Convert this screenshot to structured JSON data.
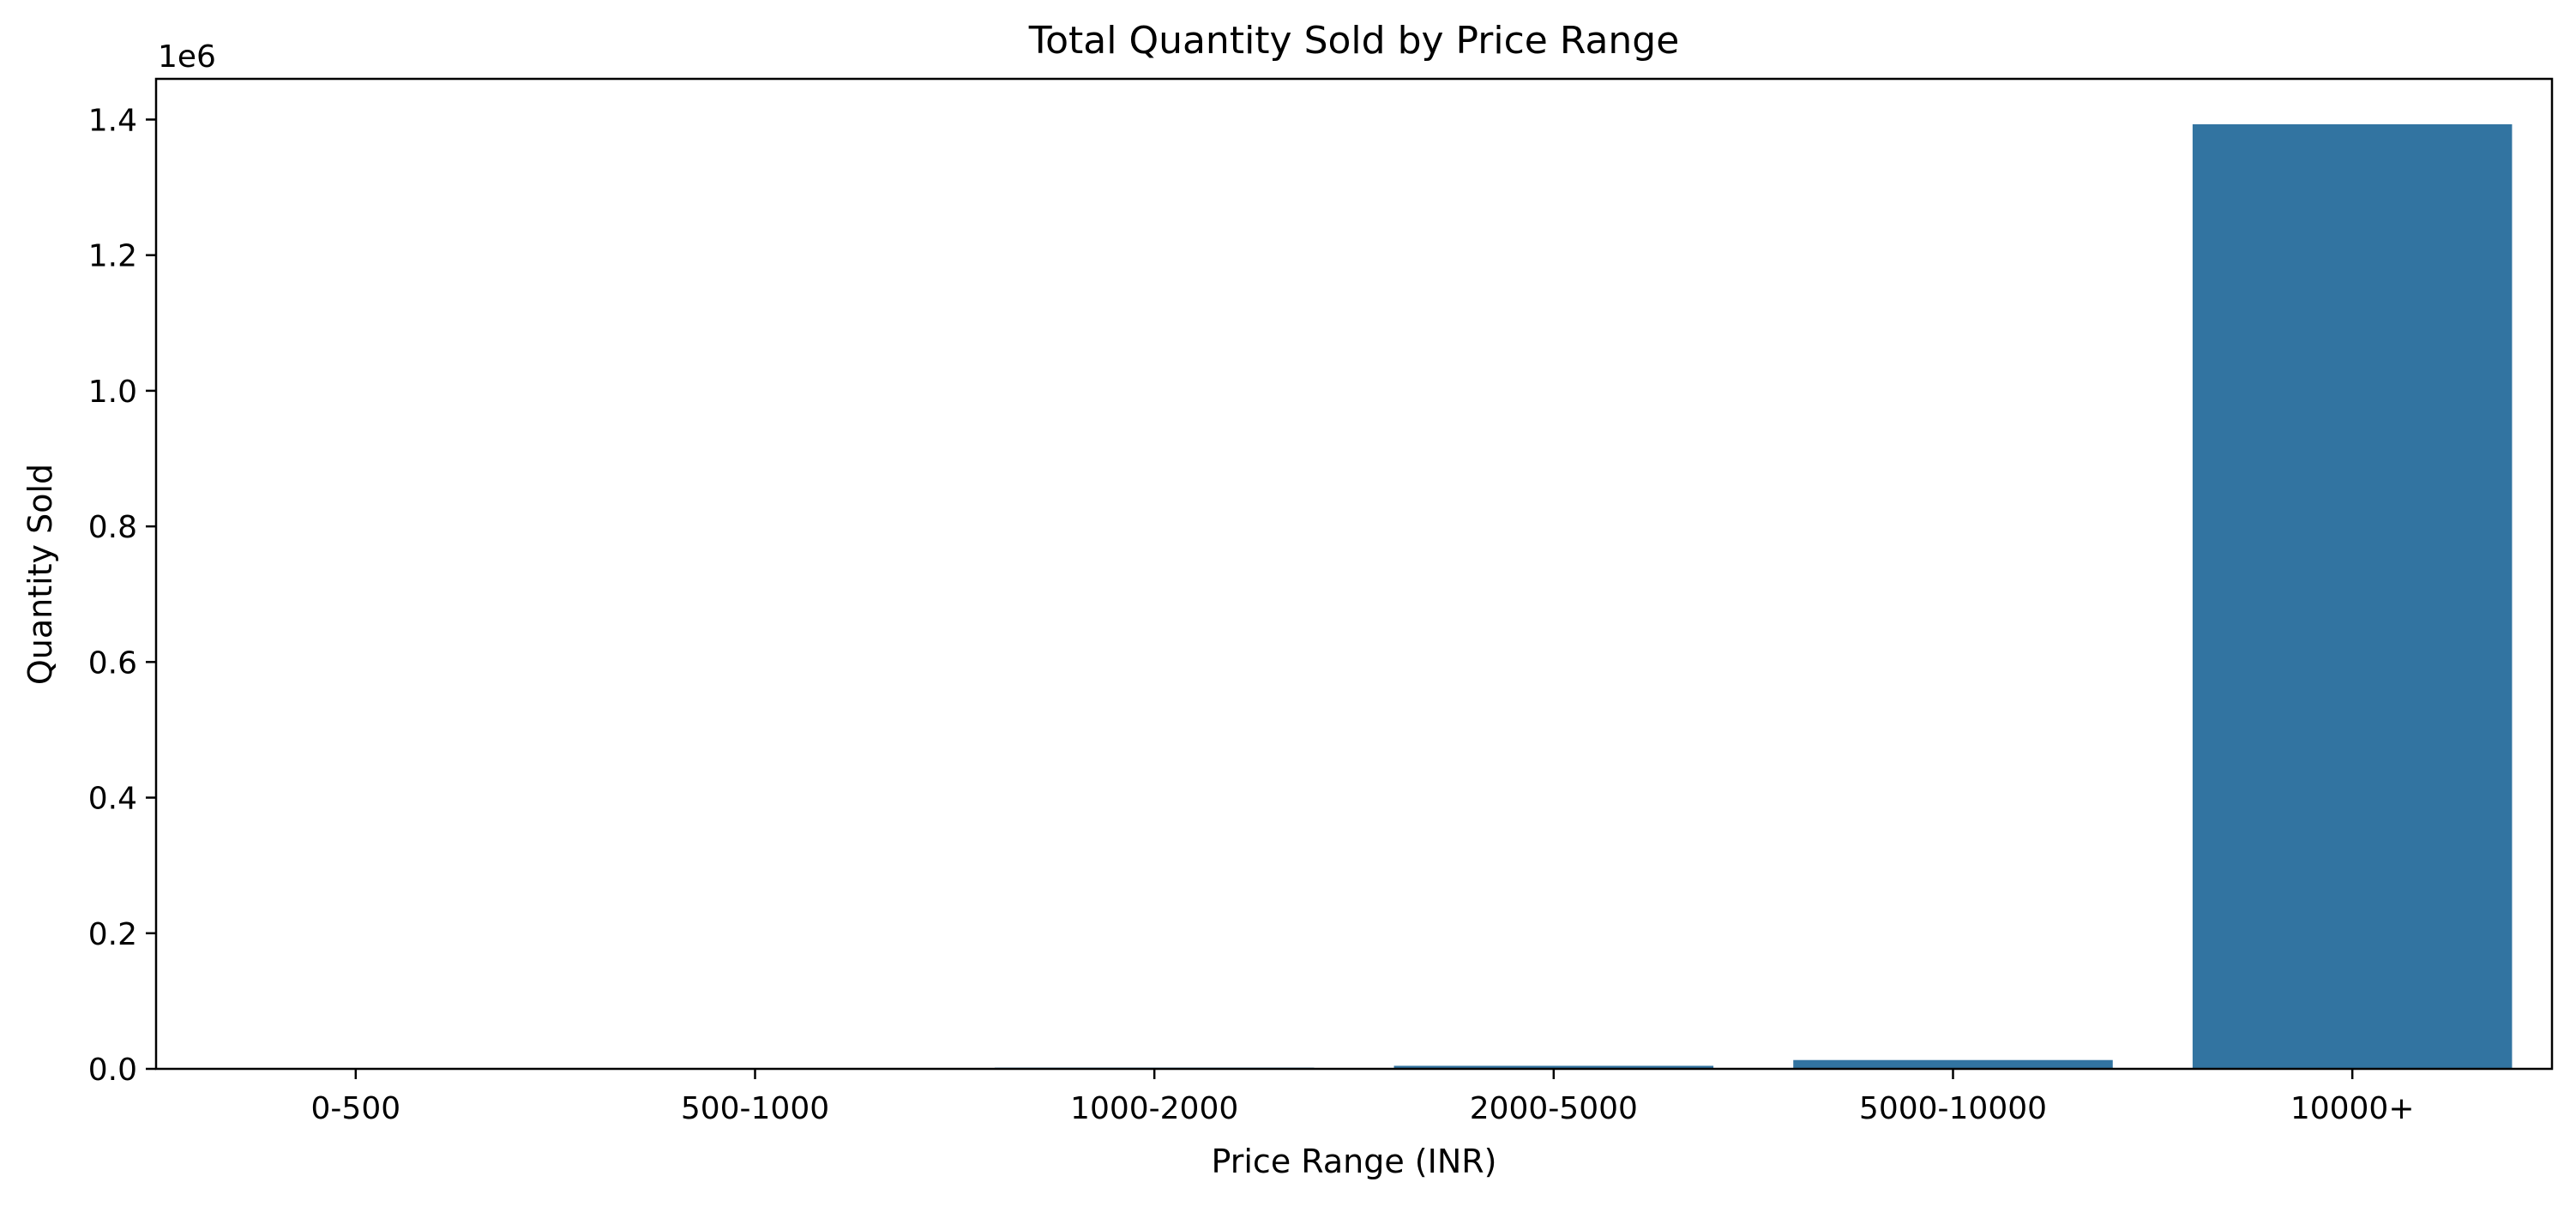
{
  "chart_data": {
    "type": "bar",
    "title": "Total Quantity Sold by Price Range",
    "xlabel": "Price Range (INR)",
    "ylabel": "Quantity Sold",
    "scale_label": "1e6",
    "categories": [
      "0-500",
      "500-1000",
      "1000-2000",
      "2000-5000",
      "5000-10000",
      "10000+"
    ],
    "values": [
      100,
      600,
      1800,
      4500,
      13000,
      1393000
    ],
    "ylim": [
      0,
      1460000
    ],
    "yticks": [
      0,
      200000,
      400000,
      600000,
      800000,
      1000000,
      1200000,
      1400000
    ],
    "ytick_labels": [
      "0.0",
      "0.2",
      "0.4",
      "0.6",
      "0.8",
      "1.0",
      "1.2",
      "1.4"
    ],
    "grid": false,
    "legend": "none",
    "bar_color": "#3274a1"
  }
}
